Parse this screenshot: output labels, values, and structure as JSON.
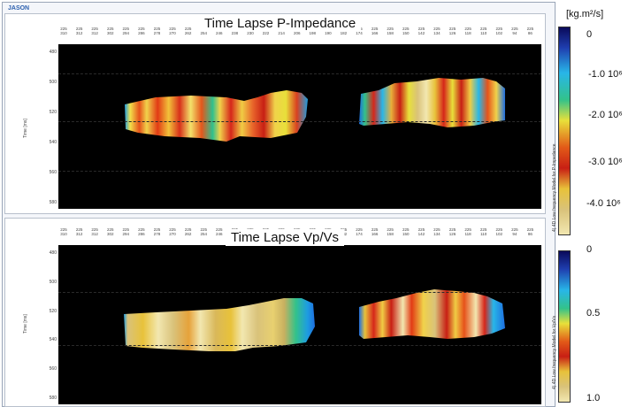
{
  "app": {
    "name": "JASON"
  },
  "colors": {
    "plot_background": "#000000",
    "colorbar": [
      "#0a0a5a",
      "#1f3fb0",
      "#28b6e8",
      "#33c28a",
      "#e8e03a",
      "#e25a18",
      "#c81f14",
      "#e8c23a",
      "#d9c27a",
      "#f2e7b0"
    ]
  },
  "x_ticks": [
    [
      "225",
      "310"
    ],
    [
      "225",
      "312"
    ],
    [
      "225",
      "312"
    ],
    [
      "225",
      "302"
    ],
    [
      "225",
      "294"
    ],
    [
      "225",
      "286"
    ],
    [
      "225",
      "278"
    ],
    [
      "225",
      "270"
    ],
    [
      "225",
      "262"
    ],
    [
      "225",
      "254"
    ],
    [
      "225",
      "246"
    ],
    [
      "225",
      "238"
    ],
    [
      "225",
      "230"
    ],
    [
      "225",
      "222"
    ],
    [
      "225",
      "214"
    ],
    [
      "225",
      "206"
    ],
    [
      "225",
      "198"
    ],
    [
      "225",
      "190"
    ],
    [
      "225",
      "182"
    ],
    [
      "225",
      "174"
    ],
    [
      "225",
      "166"
    ],
    [
      "225",
      "158"
    ],
    [
      "225",
      "150"
    ],
    [
      "225",
      "142"
    ],
    [
      "225",
      "134"
    ],
    [
      "225",
      "126"
    ],
    [
      "225",
      "118"
    ],
    [
      "225",
      "110"
    ],
    [
      "225",
      "102"
    ],
    [
      "225",
      "94"
    ],
    [
      "225",
      "86"
    ]
  ],
  "panels": [
    {
      "title": "Time Lapse P-Impedance",
      "y_ticks": [
        "480",
        "500",
        "520",
        "540",
        "560",
        "580"
      ],
      "y_axis_label": "Time [ms]",
      "colorbar_side_label": "4) 4D Low frequency Model for P-Impedance",
      "unit": "[kg.m²/s]",
      "colorbar_labels": [
        "0",
        "-1.0 10⁶",
        "-2.0 10⁶",
        "-3.0 10⁶",
        "-4.0 10⁶"
      ]
    },
    {
      "title": "Time Lapse Vp/Vs",
      "y_ticks": [
        "480",
        "500",
        "520",
        "540",
        "560",
        "580"
      ],
      "y_axis_label": "Time [ms]",
      "colorbar_side_label": "4) 4D Low frequency Model for Vp/Vs",
      "unit": "",
      "colorbar_labels": [
        "0",
        "0.5",
        "1.0"
      ]
    }
  ]
}
